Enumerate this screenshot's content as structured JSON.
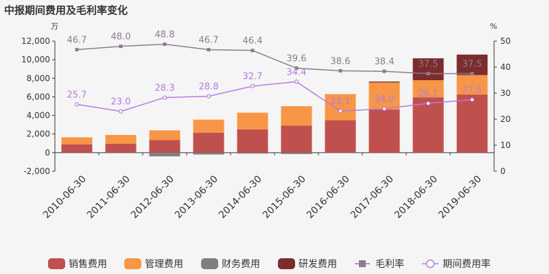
{
  "chart_data": {
    "type": "bar",
    "title": "中报期间费用及毛利率变化",
    "left_unit": "万",
    "right_unit": "%",
    "categories": [
      "2010-06-30",
      "2011-06-30",
      "2012-06-30",
      "2013-06-30",
      "2014-06-30",
      "2015-06-30",
      "2016-06-30",
      "2017-06-30",
      "2018-06-30",
      "2019-06-30"
    ],
    "y_left": {
      "min": -2000,
      "max": 12000,
      "ticks": [
        "-2,000",
        "0",
        "2,000",
        "4,000",
        "6,000",
        "8,000",
        "10,000",
        "12,000"
      ]
    },
    "y_right": {
      "min": 0,
      "max": 50,
      "ticks": [
        "0",
        "10",
        "20",
        "30",
        "40",
        "50"
      ]
    },
    "bar_series": [
      {
        "name": "销售费用",
        "color": "#c0504d",
        "values": [
          900,
          950,
          1350,
          2150,
          2500,
          2900,
          3500,
          4650,
          5950,
          6250
        ]
      },
      {
        "name": "管理费用",
        "color": "#f79646",
        "values": [
          750,
          950,
          1050,
          1400,
          1800,
          2100,
          2800,
          2900,
          1850,
          2100
        ]
      },
      {
        "name": "财务费用",
        "color": "#7f7f7f",
        "values": [
          0,
          0,
          -400,
          -200,
          -100,
          -150,
          -50,
          0,
          -50,
          0
        ]
      },
      {
        "name": "研发费用",
        "color": "#7b2c2c",
        "values": [
          0,
          0,
          0,
          0,
          0,
          0,
          0,
          100,
          2350,
          2200
        ]
      }
    ],
    "line_series": [
      {
        "name": "毛利率",
        "color": "#8c7b91",
        "values": [
          46.7,
          48.0,
          48.8,
          46.7,
          46.4,
          39.6,
          38.6,
          38.4,
          37.5,
          37.5
        ],
        "labels": [
          "46.7",
          "48.0",
          "48.8",
          "46.7",
          "46.4",
          "39.6",
          "38.6",
          "38.4",
          "37.5",
          "37.5"
        ]
      },
      {
        "name": "期间费用率",
        "color": "#b57ae0",
        "values": [
          25.7,
          23.0,
          28.3,
          28.8,
          32.7,
          34.4,
          23.1,
          24.0,
          26.1,
          27.5
        ],
        "labels": [
          "25.7",
          "23.0",
          "28.3",
          "28.8",
          "32.7",
          "34.4",
          "23.1",
          "24.0",
          "26.1",
          "27.5"
        ]
      }
    ],
    "legend_position": "bottom",
    "grid": false
  }
}
